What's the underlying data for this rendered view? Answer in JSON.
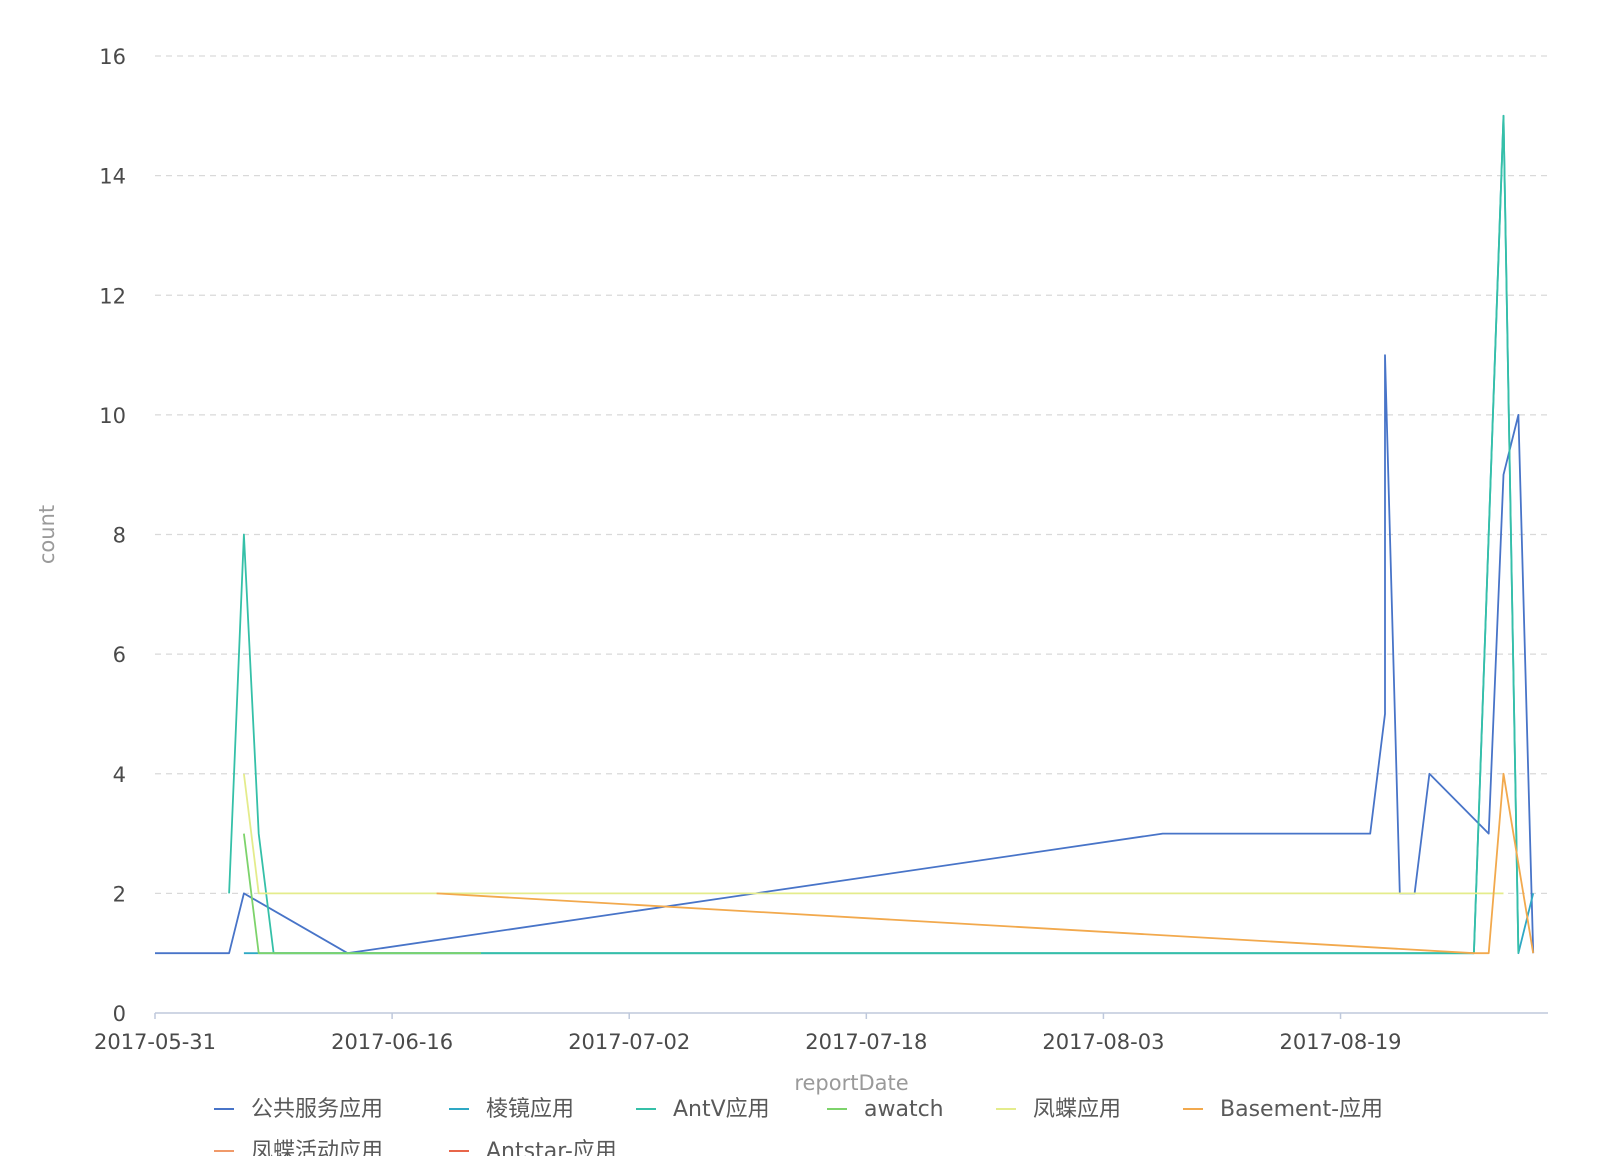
{
  "chart_data": {
    "type": "line",
    "xlabel": "reportDate",
    "ylabel": "count",
    "x_type": "date",
    "xlim": [
      "2017-05-31",
      "2017-09-02"
    ],
    "ylim": [
      0,
      16
    ],
    "x_ticks": [
      "2017-05-31",
      "2017-06-16",
      "2017-07-02",
      "2017-07-18",
      "2017-08-03",
      "2017-08-19"
    ],
    "y_ticks": [
      0,
      2,
      4,
      6,
      8,
      10,
      12,
      14,
      16
    ],
    "grid": true,
    "legend_position": "bottom",
    "series": [
      {
        "name": "公共服务应用",
        "color": "#4874c8",
        "points": [
          [
            "2017-05-31",
            1
          ],
          [
            "2017-06-05",
            1
          ],
          [
            "2017-06-06",
            2
          ],
          [
            "2017-06-13",
            1
          ],
          [
            "2017-08-07",
            3
          ],
          [
            "2017-08-21",
            3
          ],
          [
            "2017-08-22",
            5
          ],
          [
            "2017-08-22",
            11
          ],
          [
            "2017-08-23",
            2
          ],
          [
            "2017-08-24",
            2
          ],
          [
            "2017-08-25",
            4
          ],
          [
            "2017-08-29",
            3
          ],
          [
            "2017-08-30",
            9
          ],
          [
            "2017-08-31",
            10
          ],
          [
            "2017-09-01",
            1
          ]
        ]
      },
      {
        "name": "棱镜应用",
        "color": "#2ea8c4",
        "points": [
          [
            "2017-06-06",
            1
          ],
          [
            "2017-06-29",
            1
          ],
          [
            "2017-08-28",
            1
          ],
          [
            "2017-08-30",
            15
          ],
          [
            "2017-08-31",
            1
          ],
          [
            "2017-09-01",
            2
          ]
        ]
      },
      {
        "name": "AntV应用",
        "color": "#35c0a8",
        "points": [
          [
            "2017-06-05",
            2
          ],
          [
            "2017-06-06",
            8
          ],
          [
            "2017-06-07",
            3
          ],
          [
            "2017-06-08",
            1
          ],
          [
            "2017-08-28",
            1
          ],
          [
            "2017-08-30",
            15
          ],
          [
            "2017-08-31",
            1
          ]
        ]
      },
      {
        "name": "awatch",
        "color": "#7dd36b",
        "points": [
          [
            "2017-06-06",
            3
          ],
          [
            "2017-06-07",
            1
          ],
          [
            "2017-06-22",
            1
          ]
        ]
      },
      {
        "name": "凤蝶应用",
        "color": "#e4ec8c",
        "points": [
          [
            "2017-06-06",
            4
          ],
          [
            "2017-06-07",
            2
          ],
          [
            "2017-08-30",
            2
          ]
        ]
      },
      {
        "name": "Basement-应用",
        "color": "#f2a94d",
        "points": [
          [
            "2017-06-19",
            2
          ],
          [
            "2017-08-28",
            1
          ],
          [
            "2017-08-29",
            1
          ],
          [
            "2017-08-30",
            4
          ],
          [
            "2017-09-01",
            1
          ]
        ]
      },
      {
        "name": "凤蝶活动应用",
        "color": "#f09a6a",
        "points": []
      },
      {
        "name": "Antstar-应用",
        "color": "#e8664a",
        "points": []
      }
    ]
  }
}
